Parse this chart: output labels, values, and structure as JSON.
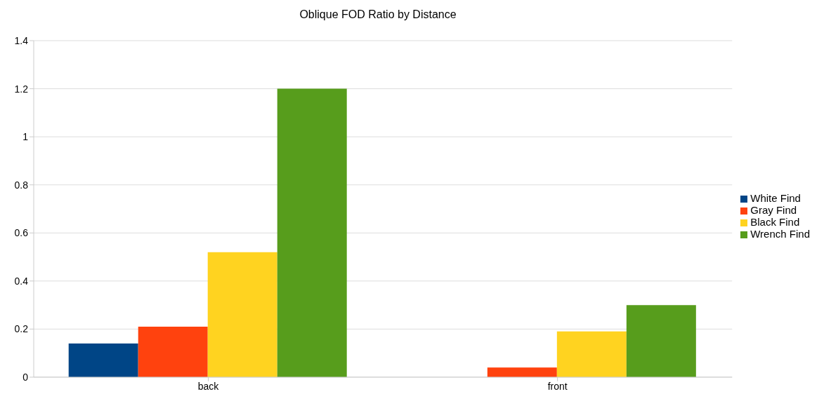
{
  "chart_data": {
    "type": "bar",
    "title": "Oblique FOD Ratio by Distance",
    "categories": [
      "back",
      "front"
    ],
    "series": [
      {
        "name": "White Find",
        "color": "#004586",
        "values": [
          0.14,
          0
        ]
      },
      {
        "name": "Gray Find",
        "color": "#ff420e",
        "values": [
          0.21,
          0.04
        ]
      },
      {
        "name": "Black Find",
        "color": "#ffd320",
        "values": [
          0.52,
          0.19
        ]
      },
      {
        "name": "Wrench Find",
        "color": "#579d1c",
        "values": [
          1.2,
          0.3
        ]
      }
    ],
    "ylim": [
      0,
      1.4
    ],
    "yticks": [
      0,
      0.2,
      0.4,
      0.6,
      0.8,
      1,
      1.2,
      1.4
    ],
    "grid": "y",
    "legend": "right"
  }
}
